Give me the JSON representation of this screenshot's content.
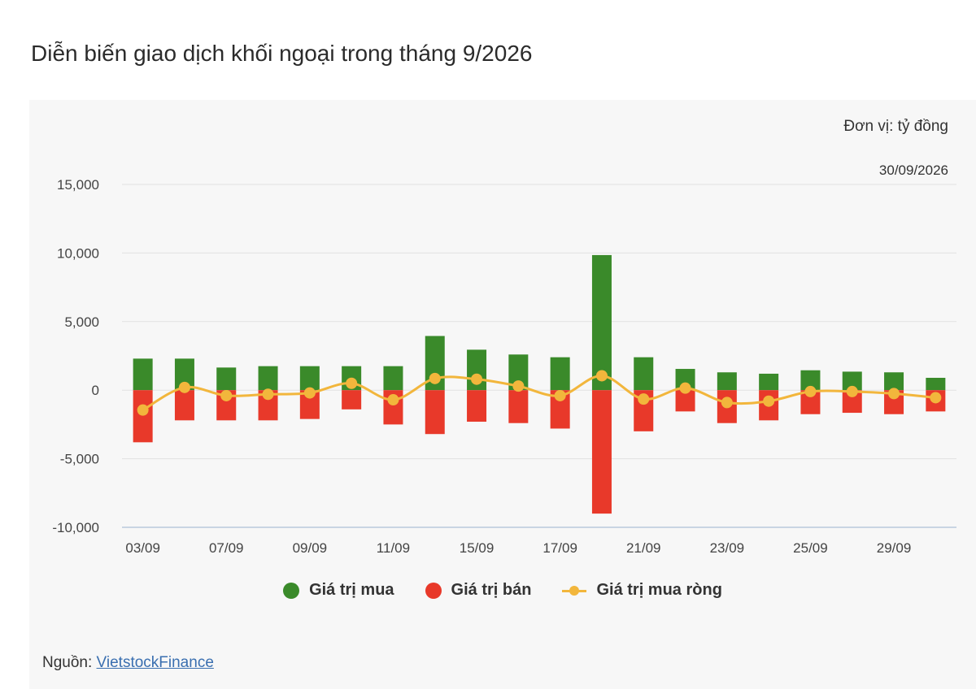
{
  "title": "Diễn biến giao dịch khối ngoại trong tháng 9/2026",
  "unit_label": "Đơn vị: tỷ đồng",
  "date_label": "30/09/2026",
  "source": {
    "prefix": "Nguồn: ",
    "link_text": "VietstockFinance"
  },
  "colors": {
    "buy": "#3a8a2a",
    "sell": "#e8392a",
    "net": "#f2b63c",
    "grid": "#e2e2e2"
  },
  "legend": {
    "buy": "Giá trị mua",
    "sell": "Giá trị bán",
    "net": "Giá trị mua ròng"
  },
  "chart_data": {
    "type": "bar",
    "x_tick_labels": [
      "03/09",
      "07/09",
      "09/09",
      "11/09",
      "15/09",
      "17/09",
      "21/09",
      "23/09",
      "25/09",
      "29/09"
    ],
    "y_tick_labels": [
      "15,000",
      "10,000",
      "5,000",
      "0",
      "-5,000",
      "-10,000"
    ],
    "y_ticks": [
      15000,
      10000,
      5000,
      0,
      -5000,
      -10000
    ],
    "ylim": [
      -10000,
      15000
    ],
    "categories": [
      "03/09",
      "04/09",
      "07/09",
      "08/09",
      "09/09",
      "10/09",
      "11/09",
      "14/09",
      "15/09",
      "16/09",
      "17/09",
      "18/09",
      "21/09",
      "22/09",
      "23/09",
      "24/09",
      "25/09",
      "28/09",
      "29/09",
      "30/09"
    ],
    "series": [
      {
        "name": "Giá trị mua",
        "type": "bar",
        "values": [
          2300,
          2300,
          1650,
          1750,
          1750,
          1750,
          1750,
          3950,
          2950,
          2600,
          2400,
          9850,
          2400,
          1550,
          1300,
          1200,
          1450,
          1350,
          1300,
          900
        ]
      },
      {
        "name": "Giá trị bán",
        "type": "bar",
        "values": [
          -3800,
          -2200,
          -2200,
          -2200,
          -2100,
          -1400,
          -2500,
          -3200,
          -2300,
          -2400,
          -2800,
          -9000,
          -3000,
          -1550,
          -2400,
          -2200,
          -1750,
          -1650,
          -1750,
          -1550
        ]
      },
      {
        "name": "Giá trị mua ròng",
        "type": "line",
        "values": [
          -1450,
          200,
          -400,
          -300,
          -200,
          500,
          -700,
          850,
          800,
          300,
          -400,
          1050,
          -650,
          150,
          -900,
          -800,
          -100,
          -100,
          -250,
          -550
        ]
      }
    ],
    "grid": true
  }
}
